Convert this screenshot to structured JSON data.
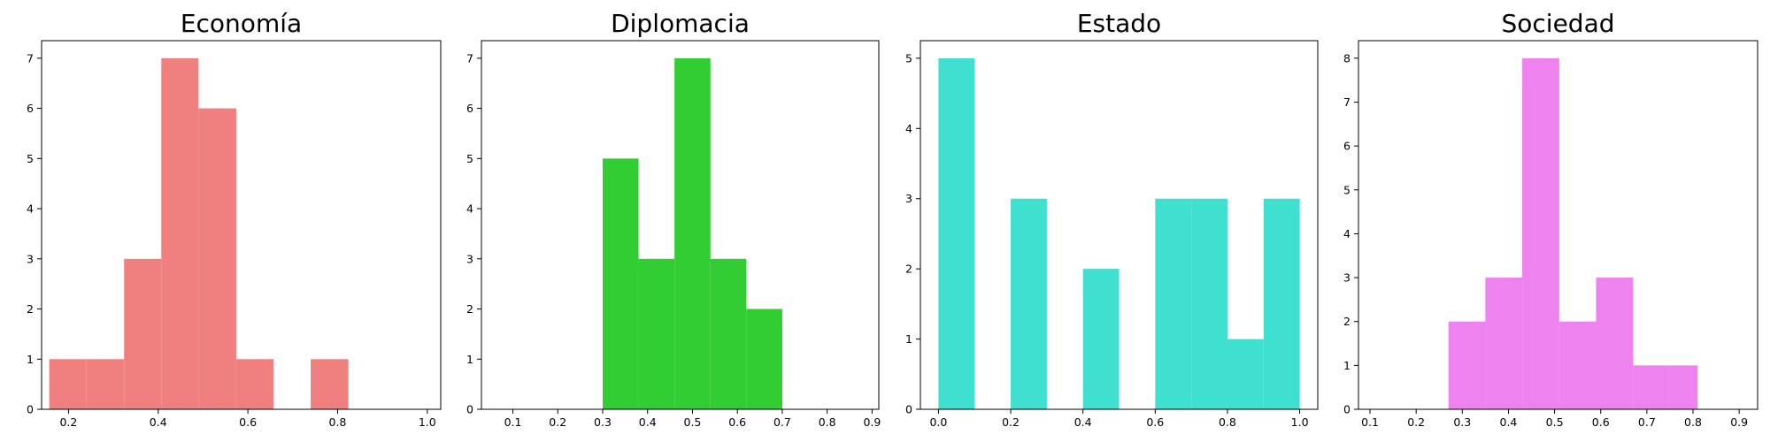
{
  "chart_data": [
    {
      "type": "bar",
      "title": "Economía",
      "color": "#F08080",
      "xlim": [
        0.14,
        1.03
      ],
      "ylim": [
        0,
        7.35
      ],
      "xticks": [
        "0.2",
        "0.4",
        "0.6",
        "0.8",
        "1.0"
      ],
      "yticks": [
        "0",
        "1",
        "2",
        "3",
        "4",
        "5",
        "6",
        "7"
      ],
      "bins": [
        {
          "x0": 0.157,
          "x1": 0.24,
          "value": 1
        },
        {
          "x0": 0.24,
          "x1": 0.324,
          "value": 1
        },
        {
          "x0": 0.324,
          "x1": 0.407,
          "value": 3
        },
        {
          "x0": 0.407,
          "x1": 0.49,
          "value": 7
        },
        {
          "x0": 0.49,
          "x1": 0.574,
          "value": 6
        },
        {
          "x0": 0.574,
          "x1": 0.657,
          "value": 1
        },
        {
          "x0": 0.657,
          "x1": 0.74,
          "value": 0
        },
        {
          "x0": 0.74,
          "x1": 0.824,
          "value": 1
        }
      ]
    },
    {
      "type": "bar",
      "title": "Diplomacia",
      "color": "#32CD32",
      "xlim": [
        0.03,
        0.915
      ],
      "ylim": [
        0,
        7.35
      ],
      "xticks": [
        "0.1",
        "0.2",
        "0.3",
        "0.4",
        "0.5",
        "0.6",
        "0.7",
        "0.8",
        "0.9"
      ],
      "yticks": [
        "0",
        "1",
        "2",
        "3",
        "4",
        "5",
        "6",
        "7"
      ],
      "bins": [
        {
          "x0": 0.3,
          "x1": 0.38,
          "value": 5
        },
        {
          "x0": 0.38,
          "x1": 0.46,
          "value": 3
        },
        {
          "x0": 0.46,
          "x1": 0.54,
          "value": 7
        },
        {
          "x0": 0.54,
          "x1": 0.62,
          "value": 3
        },
        {
          "x0": 0.62,
          "x1": 0.7,
          "value": 2
        }
      ]
    },
    {
      "type": "bar",
      "title": "Estado",
      "color": "#40E0D0",
      "xlim": [
        -0.05,
        1.05
      ],
      "ylim": [
        0,
        5.25
      ],
      "xticks": [
        "0.0",
        "0.2",
        "0.4",
        "0.6",
        "0.8",
        "1.0"
      ],
      "yticks": [
        "0",
        "1",
        "2",
        "3",
        "4",
        "5"
      ],
      "bins": [
        {
          "x0": 0.0,
          "x1": 0.1,
          "value": 5
        },
        {
          "x0": 0.1,
          "x1": 0.2,
          "value": 0
        },
        {
          "x0": 0.2,
          "x1": 0.3,
          "value": 3
        },
        {
          "x0": 0.3,
          "x1": 0.4,
          "value": 0
        },
        {
          "x0": 0.4,
          "x1": 0.5,
          "value": 2
        },
        {
          "x0": 0.5,
          "x1": 0.6,
          "value": 0
        },
        {
          "x0": 0.6,
          "x1": 0.7,
          "value": 3
        },
        {
          "x0": 0.7,
          "x1": 0.8,
          "value": 3
        },
        {
          "x0": 0.8,
          "x1": 0.9,
          "value": 1
        },
        {
          "x0": 0.9,
          "x1": 1.0,
          "value": 3
        }
      ]
    },
    {
      "type": "bar",
      "title": "Sociedad",
      "color": "#EE82EE",
      "xlim": [
        0.075,
        0.94
      ],
      "ylim": [
        0,
        8.4
      ],
      "xticks": [
        "0.1",
        "0.2",
        "0.3",
        "0.4",
        "0.5",
        "0.6",
        "0.7",
        "0.8",
        "0.9"
      ],
      "yticks": [
        "0",
        "1",
        "2",
        "3",
        "4",
        "5",
        "6",
        "7",
        "8"
      ],
      "bins": [
        {
          "x0": 0.27,
          "x1": 0.35,
          "value": 2
        },
        {
          "x0": 0.35,
          "x1": 0.43,
          "value": 3
        },
        {
          "x0": 0.43,
          "x1": 0.51,
          "value": 8
        },
        {
          "x0": 0.51,
          "x1": 0.59,
          "value": 2
        },
        {
          "x0": 0.59,
          "x1": 0.67,
          "value": 3
        },
        {
          "x0": 0.67,
          "x1": 0.75,
          "value": 1
        },
        {
          "x0": 0.75,
          "x1": 0.81,
          "value": 1
        }
      ]
    }
  ]
}
